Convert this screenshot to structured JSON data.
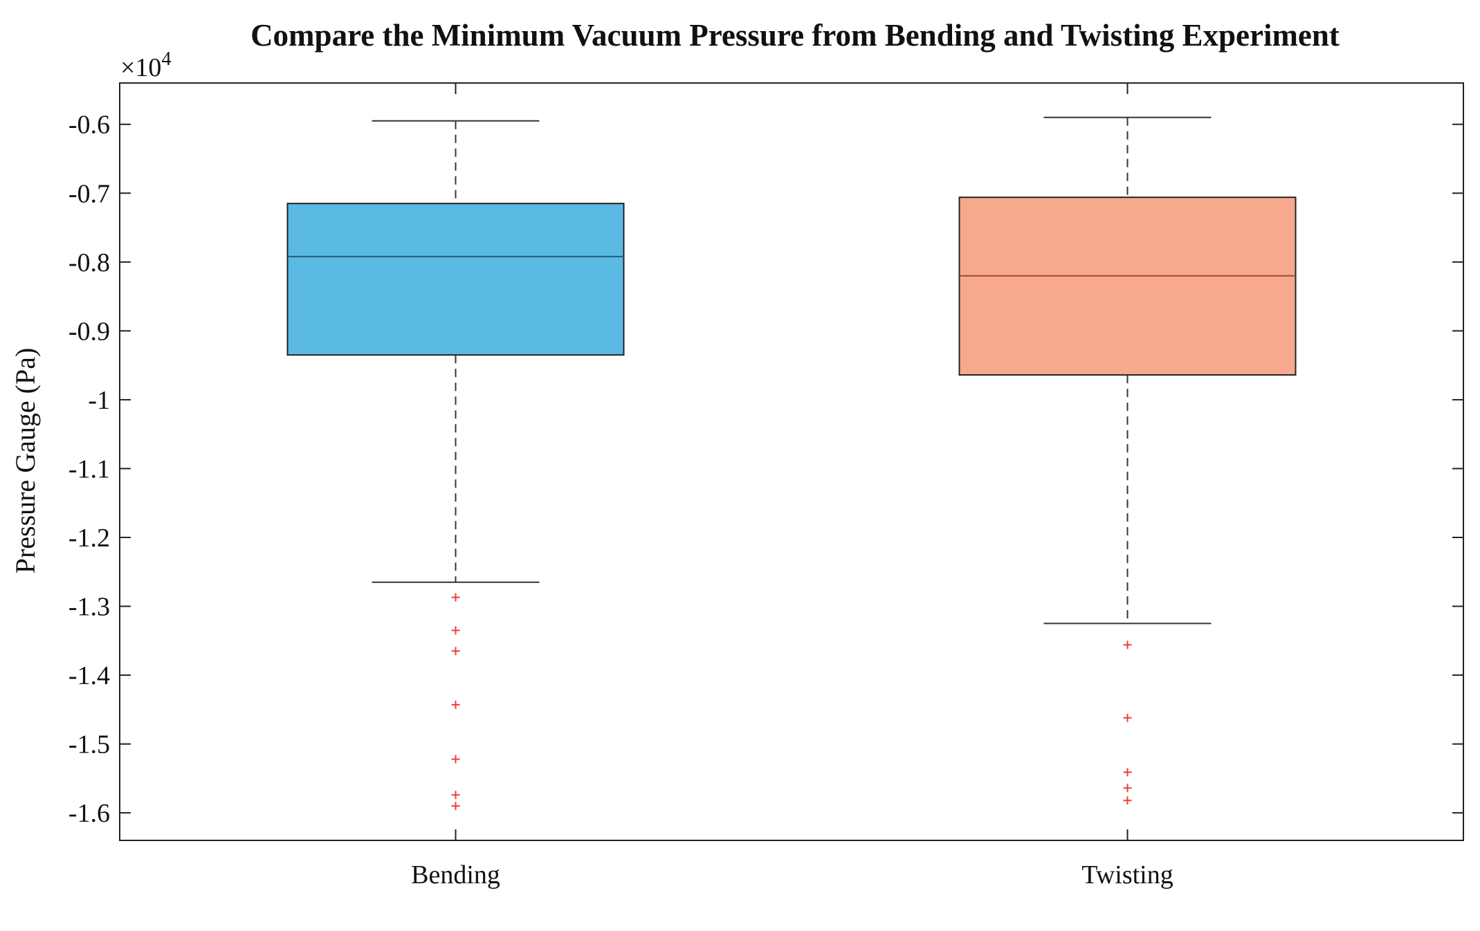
{
  "chart_data": {
    "type": "box",
    "title": "Compare the Minimum Vacuum Pressure from Bending and Twisting Experiment",
    "xlabel": "",
    "ylabel": "Pressure Gauge (Pa)",
    "y_multiplier_label": "×10",
    "y_multiplier_exponent": "4",
    "ylim": [
      -16400,
      -5400
    ],
    "y_ticks": [
      -6000,
      -7000,
      -8000,
      -9000,
      -10000,
      -11000,
      -12000,
      -13000,
      -14000,
      -15000,
      -16000
    ],
    "y_tick_labels": [
      "-0.6",
      "-0.7",
      "-0.8",
      "-0.9",
      "-1",
      "-1.1",
      "-1.2",
      "-1.3",
      "-1.4",
      "-1.5",
      "-1.6"
    ],
    "categories": [
      "Bending",
      "Twisting"
    ],
    "grid": false,
    "series": [
      {
        "category": "Bending",
        "color": "#5BBAE3",
        "median_color": "#1F5F7A",
        "whisker_high": -5950,
        "q3": -7150,
        "median": -7920,
        "q1": -9350,
        "whisker_low": -12650,
        "outliers": [
          -12870,
          -13350,
          -13650,
          -14430,
          -15220,
          -15740,
          -15900
        ]
      },
      {
        "category": "Twisting",
        "color": "#F7A98D",
        "median_color": "#A0462C",
        "whisker_high": -5900,
        "q3": -7060,
        "median": -8200,
        "q1": -9640,
        "whisker_low": -13250,
        "outliers": [
          -13560,
          -14620,
          -15410,
          -15640,
          -15820
        ]
      }
    ]
  }
}
